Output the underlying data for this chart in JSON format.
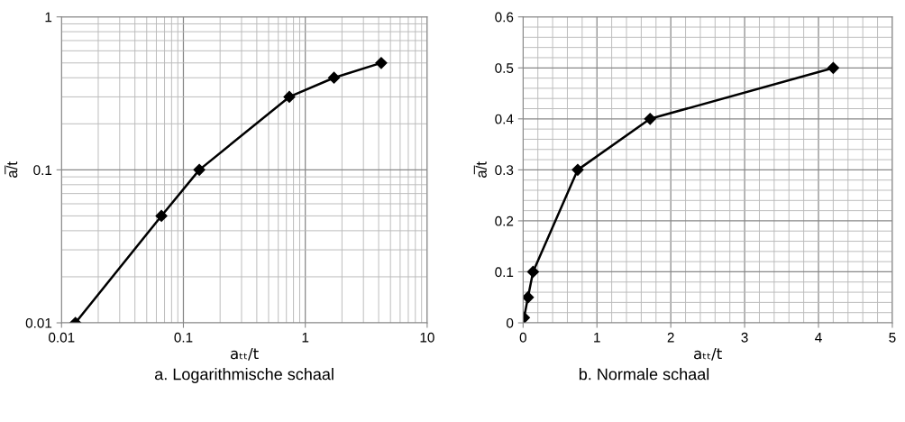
{
  "chart_data": [
    {
      "type": "line",
      "title": "a. Logarithmische schaal",
      "xlabel": "aₜₜ/t",
      "ylabel": "a̅/t",
      "log": "xy",
      "x": [
        0.013,
        0.066,
        0.135,
        0.74,
        1.72,
        4.2
      ],
      "series": [
        {
          "color": "#000000",
          "values": [
            0.01,
            0.05,
            0.1,
            0.3,
            0.4,
            0.5
          ]
        }
      ],
      "xlim": [
        0.01,
        10
      ],
      "ylim": [
        0.01,
        1
      ],
      "xticks": [
        0.01,
        0.1,
        1,
        10
      ],
      "yticks": [
        0.01,
        0.1,
        1
      ],
      "grid": true,
      "marker": "diamond",
      "line_style": "solid"
    },
    {
      "type": "line",
      "title": "b. Normale schaal",
      "xlabel": "aₜₜ/t",
      "ylabel": "a̅/t",
      "x": [
        0.013,
        0.066,
        0.135,
        0.74,
        1.72,
        4.2
      ],
      "series": [
        {
          "color": "#000000",
          "values": [
            0.01,
            0.05,
            0.1,
            0.3,
            0.4,
            0.5
          ]
        }
      ],
      "xlim": [
        0,
        5
      ],
      "ylim": [
        0,
        0.6
      ],
      "xticks": [
        0,
        1,
        2,
        3,
        4,
        5
      ],
      "yticks": [
        0,
        0.1,
        0.2,
        0.3,
        0.4,
        0.5,
        0.6
      ],
      "grid": true,
      "marker": "diamond",
      "line_style": "solid"
    }
  ]
}
